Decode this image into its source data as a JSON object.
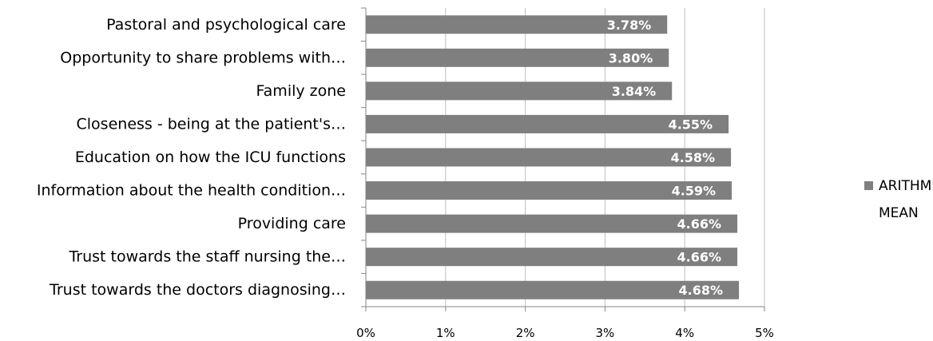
{
  "chart_data": {
    "type": "bar",
    "orientation": "horizontal",
    "categories": [
      "Pastoral and psychological care",
      "Opportunity to share problems with…",
      "Family zone",
      "Closeness - being at the patient's…",
      "Education on how the ICU functions",
      "Information about the health condition…",
      "Providing care",
      "Trust towards the staff nursing the…",
      "Trust towards the doctors diagnosing…"
    ],
    "series": [
      {
        "name": "ARITHMETIC MEAN",
        "values": [
          3.78,
          3.8,
          3.84,
          4.55,
          4.58,
          4.59,
          4.66,
          4.66,
          4.68
        ],
        "data_labels": [
          "3.78%",
          "3.80%",
          "3.84%",
          "4.55%",
          "4.58%",
          "4.59%",
          "4.66%",
          "4.66%",
          "4.68%"
        ]
      }
    ],
    "x_ticks": [
      "0%",
      "1%",
      "2%",
      "3%",
      "4%",
      "5%"
    ],
    "xlim": [
      0,
      5
    ],
    "legend_lines": [
      "ARITHMETIC",
      "MEAN"
    ],
    "legend_position": "right",
    "grid": true,
    "bar_color": "#7f7f7f",
    "grid_color": "#bfbfbf"
  }
}
